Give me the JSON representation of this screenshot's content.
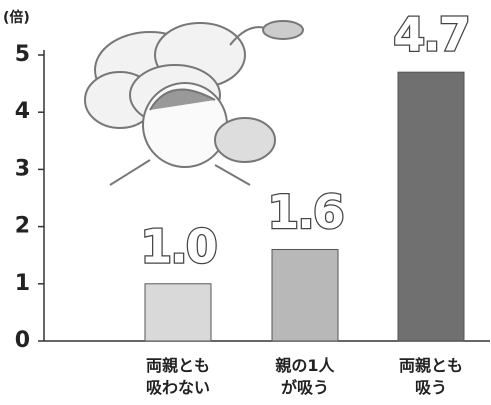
{
  "chart_data": {
    "type": "bar",
    "y_label": "(倍)",
    "categories": [
      "両親とも\n吸わない",
      "親の1人\nが吸う",
      "両親とも\n吸う"
    ],
    "values": [
      1.0,
      1.6,
      4.7
    ],
    "value_labels": [
      "1.0",
      "1.6",
      "4.7"
    ],
    "colors": [
      "#d9d9d9",
      "#b8b8b8",
      "#707070"
    ],
    "ylim": [
      0,
      5
    ],
    "yticks": [
      0,
      1,
      2,
      3,
      4,
      5
    ]
  }
}
